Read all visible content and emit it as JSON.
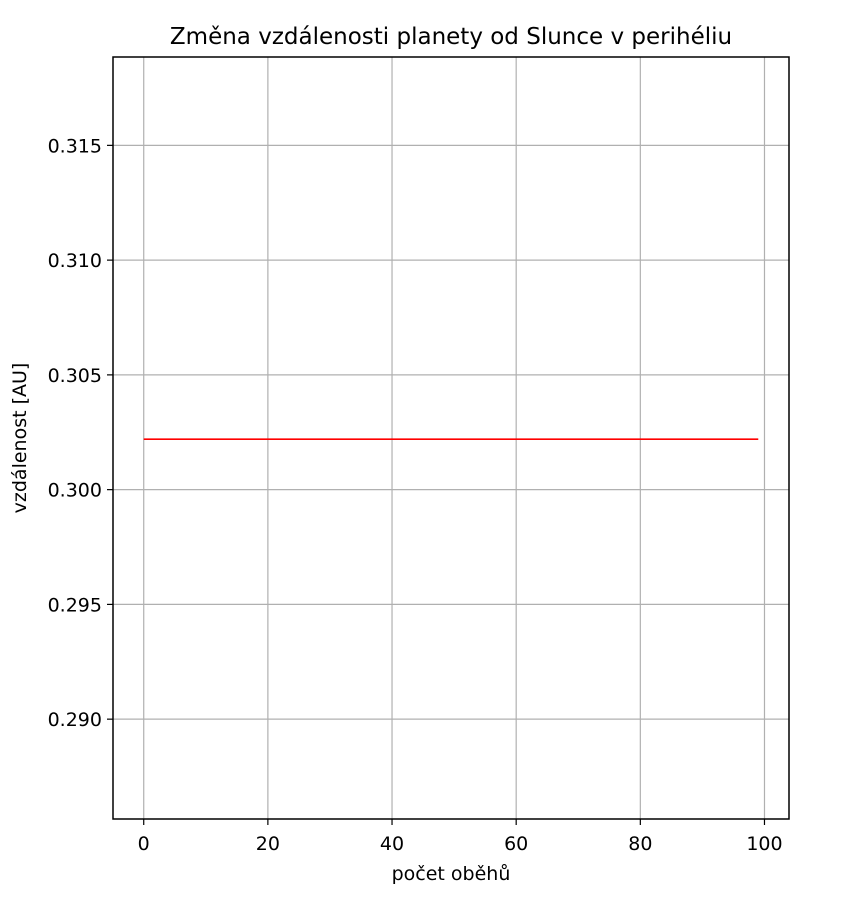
{
  "chart_data": {
    "type": "line",
    "title": "Změna vzdálenosti planety od Slunce v perihéliu",
    "xlabel": "počet oběhů",
    "ylabel": "vzdálenost [AU]",
    "xlim": [
      -4.95,
      103.95
    ],
    "ylim": [
      0.28565,
      0.31885
    ],
    "x_ticks": [
      0,
      20,
      40,
      60,
      80,
      100
    ],
    "x_tick_labels": [
      "0",
      "20",
      "40",
      "60",
      "80",
      "100"
    ],
    "y_ticks": [
      0.29,
      0.295,
      0.3,
      0.305,
      0.31,
      0.315
    ],
    "y_tick_labels": [
      "0.290",
      "0.295",
      "0.300",
      "0.305",
      "0.310",
      "0.315"
    ],
    "grid": true,
    "series": [
      {
        "color": "#ff0000",
        "x": [
          0,
          99
        ],
        "y": [
          0.3022,
          0.3022
        ]
      }
    ]
  }
}
